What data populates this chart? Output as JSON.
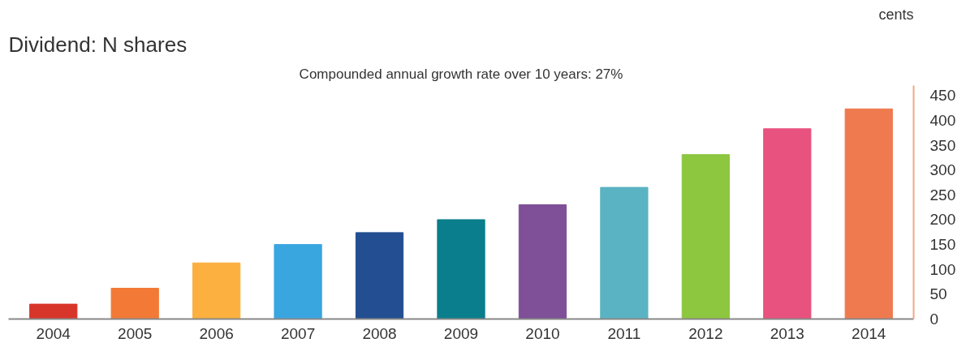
{
  "chart_data": {
    "type": "bar",
    "title": "Dividend: N shares",
    "subtitle": "Compounded annual growth rate over 10 years: 27%",
    "ylabel": "cents",
    "categories": [
      "2004",
      "2005",
      "2006",
      "2007",
      "2008",
      "2009",
      "2010",
      "2011",
      "2012",
      "2013",
      "2014"
    ],
    "values": [
      30,
      62,
      113,
      150,
      174,
      200,
      230,
      265,
      331,
      383,
      423
    ],
    "colors": [
      "#d8352a",
      "#f27a36",
      "#fbb040",
      "#3aa6e0",
      "#234e91",
      "#0a7e8c",
      "#7f4f98",
      "#5ab3c2",
      "#8dc63f",
      "#e8527f",
      "#ef7a4f"
    ],
    "ylim": [
      0,
      470
    ],
    "yticks": [
      0,
      50,
      100,
      150,
      200,
      250,
      300,
      350,
      400,
      450
    ],
    "grid": false
  }
}
